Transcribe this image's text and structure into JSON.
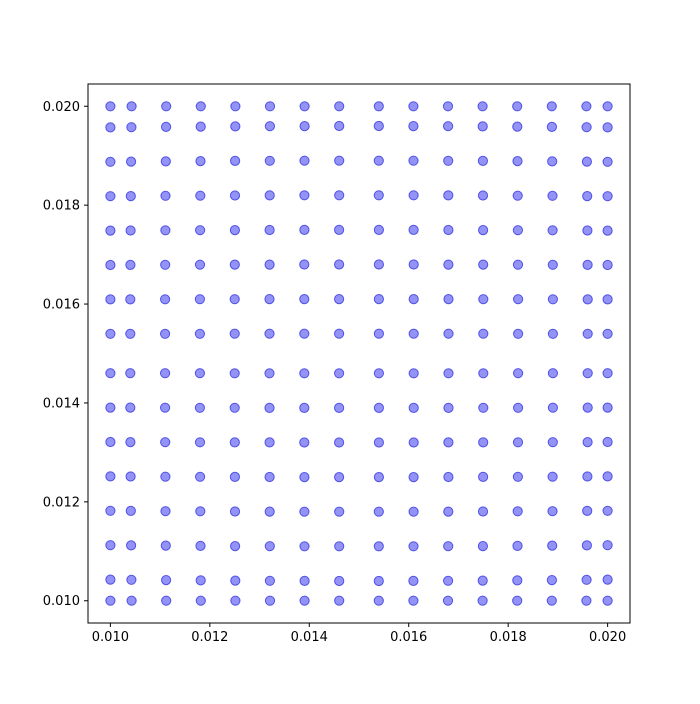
{
  "chart_data": {
    "type": "scatter",
    "title": "",
    "xlabel": "",
    "ylabel": "",
    "xlim": [
      0.00955,
      0.02045
    ],
    "ylim": [
      0.00955,
      0.02045
    ],
    "x_ticks": [
      "0.010",
      "0.012",
      "0.014",
      "0.016",
      "0.018",
      "0.020"
    ],
    "y_ticks": [
      "0.010",
      "0.012",
      "0.014",
      "0.016",
      "0.018",
      "0.020"
    ],
    "grid": false,
    "legend": "none",
    "colors": {
      "marker_fill": "#4b4bf0",
      "marker_edge": "#2b2be0",
      "axes": "#000000"
    },
    "marker_alpha": 0.6,
    "grid_nodes": [
      0.01,
      0.010714,
      0.011429,
      0.012143,
      0.012857,
      0.013571,
      0.014286,
      0.015,
      0.015714,
      0.016429,
      0.017143,
      0.017857,
      0.018571,
      0.019286,
      0.02
    ],
    "series": [
      {
        "x": [
          0.01,
          0.0104,
          0.0111,
          0.0118,
          0.0125,
          0.0132,
          0.0139,
          0.0146,
          0.0154,
          0.0161,
          0.0168,
          0.0175,
          0.0182,
          0.0189,
          0.0196,
          0.02,
          0.01,
          0.0104,
          0.0111,
          0.0118,
          0.0125,
          0.0132,
          0.0139,
          0.0146,
          0.0154,
          0.0161,
          0.0168,
          0.0175,
          0.0182,
          0.0189,
          0.0196,
          0.02,
          0.01,
          0.0104,
          0.0111,
          0.0118,
          0.0125,
          0.0132,
          0.0139,
          0.0146,
          0.0154,
          0.0161,
          0.0168,
          0.0175,
          0.0182,
          0.0189,
          0.0196,
          0.02
        ],
        "y": [
          0.02,
          0.02,
          0.02,
          0.02,
          0.02,
          0.02,
          0.02,
          0.02,
          0.02,
          0.02,
          0.02,
          0.02,
          0.02,
          0.02,
          0.02,
          0.02,
          0.0196,
          0.0196,
          0.0196,
          0.0197,
          0.0197,
          0.0197,
          0.0197,
          0.0197,
          0.0197,
          0.0197,
          0.0197,
          0.0197,
          0.0197,
          0.0196,
          0.0196,
          0.0196,
          0.01,
          0.01,
          0.01,
          0.01,
          0.01,
          0.01,
          0.01,
          0.01,
          0.01,
          0.01,
          0.01,
          0.01,
          0.01,
          0.01,
          0.01,
          0.01
        ]
      }
    ]
  }
}
